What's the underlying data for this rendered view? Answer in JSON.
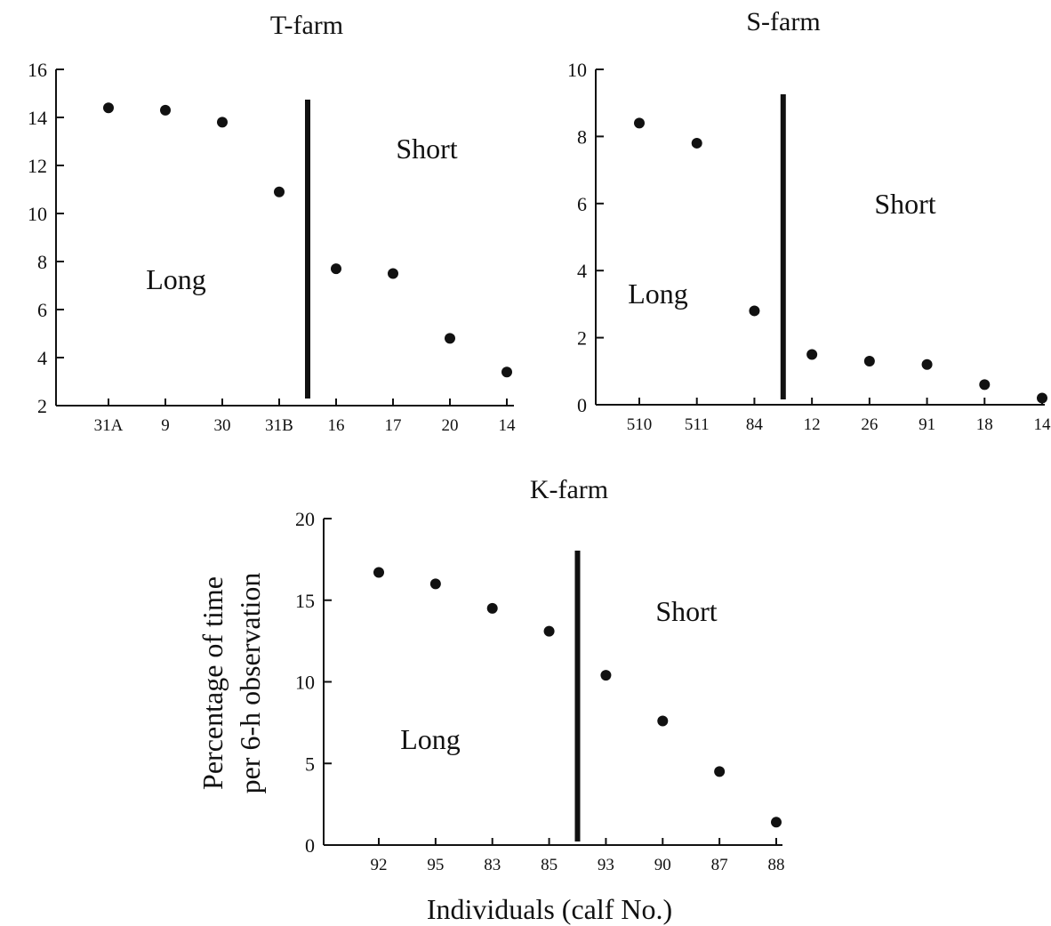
{
  "colors": {
    "ink": "#111111",
    "background": "#ffffff"
  },
  "y_axis_title_lines": [
    "Percentage of time",
    "per 6-h observation"
  ],
  "x_axis_title": "Individuals (calf No.)",
  "chart_data": [
    {
      "type": "scatter",
      "title": "T-farm",
      "categories": [
        "31A",
        "9",
        "30",
        "31B",
        "16",
        "17",
        "20",
        "14"
      ],
      "values": [
        14.4,
        14.3,
        13.8,
        10.9,
        7.7,
        7.5,
        4.8,
        3.4
      ],
      "ylim": [
        2,
        16
      ],
      "yticks": [
        "2",
        "4",
        "6",
        "8",
        "10",
        "12",
        "14",
        "16"
      ],
      "divider_after_index": 3,
      "region_labels": {
        "left": "Long",
        "right": "Short"
      },
      "xlabel": "",
      "ylabel": ""
    },
    {
      "type": "scatter",
      "title": "S-farm",
      "categories": [
        "510",
        "511",
        "84",
        "12",
        "26",
        "91",
        "18",
        "14"
      ],
      "values": [
        8.4,
        7.8,
        2.8,
        1.5,
        1.3,
        1.2,
        0.6,
        0.2
      ],
      "ylim": [
        0,
        10
      ],
      "yticks": [
        "0",
        "2",
        "4",
        "6",
        "8",
        "10"
      ],
      "divider_after_index": 2,
      "region_labels": {
        "left": "Long",
        "right": "Short"
      },
      "xlabel": "",
      "ylabel": ""
    },
    {
      "type": "scatter",
      "title": "K-farm",
      "categories": [
        "92",
        "95",
        "83",
        "85",
        "93",
        "90",
        "87",
        "88"
      ],
      "values": [
        16.7,
        16.0,
        14.5,
        13.1,
        10.4,
        7.6,
        4.5,
        1.4
      ],
      "ylim": [
        0,
        20
      ],
      "yticks": [
        "0",
        "5",
        "10",
        "15",
        "20"
      ],
      "divider_after_index": 3,
      "region_labels": {
        "left": "Long",
        "right": "Short"
      },
      "xlabel": "Individuals (calf No.)",
      "ylabel": "Percentage of time per 6-h observation"
    }
  ]
}
